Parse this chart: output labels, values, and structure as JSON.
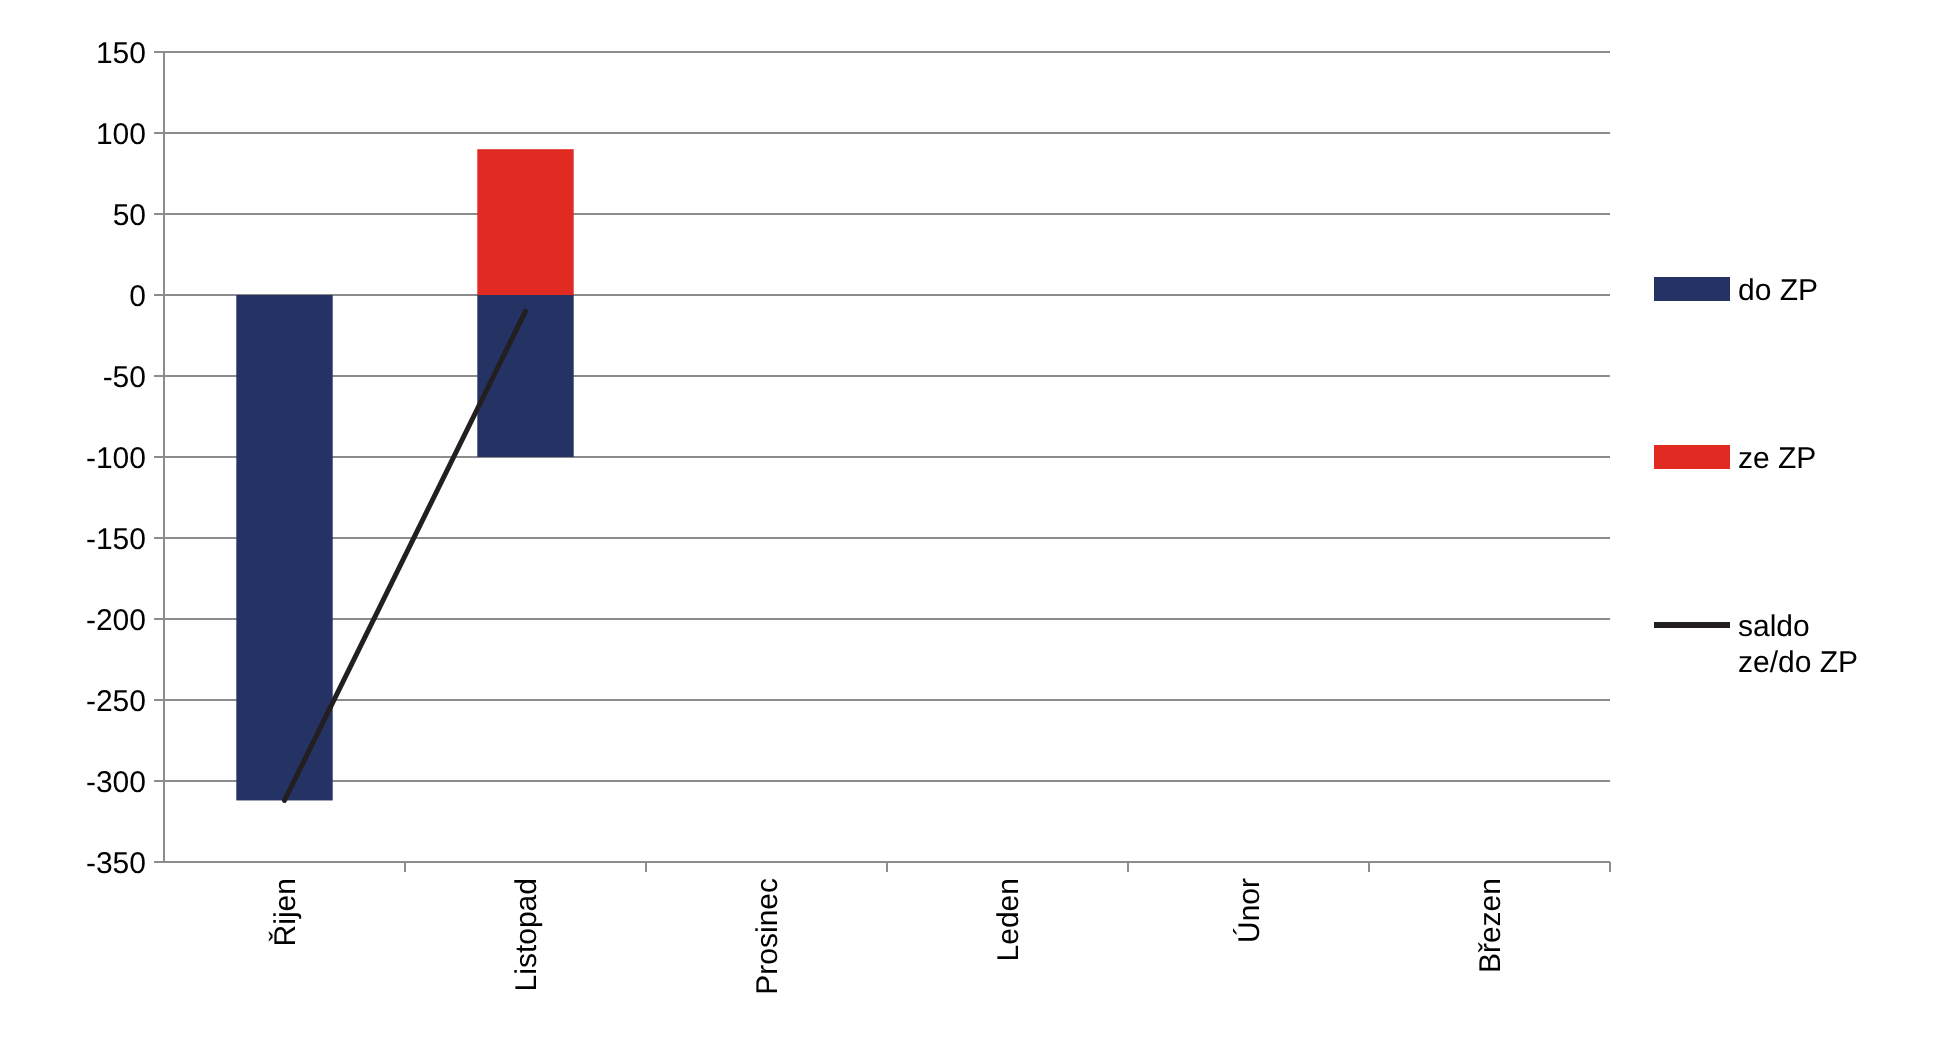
{
  "chart_data": {
    "type": "bar",
    "stacked": true,
    "categories": [
      "Řijen",
      "Listopad",
      "Prosinec",
      "Leden",
      "Únor",
      "Březen"
    ],
    "series": [
      {
        "name": "do ZP",
        "color": "#253264",
        "values": [
          -312,
          -100,
          null,
          null,
          null,
          null
        ]
      },
      {
        "name": "ze ZP",
        "color": "#e02a22",
        "values": [
          null,
          90,
          null,
          null,
          null,
          null
        ]
      },
      {
        "name": "saldo ze/do ZP",
        "type": "line",
        "color": "#231f20",
        "values": [
          -312,
          -10,
          null,
          null,
          null,
          null
        ]
      }
    ],
    "ylim": [
      -350,
      150
    ],
    "yticks": [
      -350,
      -300,
      -250,
      -200,
      -150,
      -100,
      -50,
      0,
      50,
      100,
      150
    ],
    "grid": "y",
    "legend": "right",
    "marker": "none"
  }
}
